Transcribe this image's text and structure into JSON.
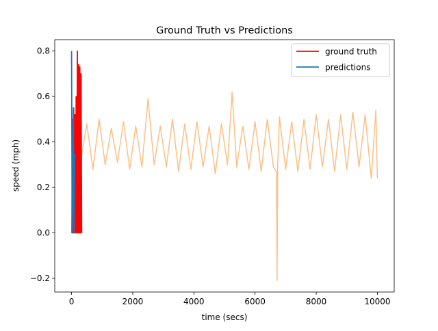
{
  "chart_data": {
    "type": "line",
    "title": "Ground Truth vs Predictions",
    "xlabel": "time (secs)",
    "ylabel": "speed (mph)",
    "xlim": [
      -550,
      10550
    ],
    "ylim": [
      -0.26,
      0.85
    ],
    "xticks": [
      0,
      2000,
      4000,
      6000,
      8000,
      10000
    ],
    "xtick_labels": [
      "0",
      "2000",
      "4000",
      "6000",
      "8000",
      "10000"
    ],
    "yticks": [
      -0.2,
      0.0,
      0.2,
      0.4,
      0.6,
      0.8
    ],
    "ytick_labels": [
      "−0.2",
      "0.0",
      "0.2",
      "0.4",
      "0.6",
      "0.8"
    ],
    "grid": false,
    "legend_position": "top-right",
    "legend": [
      {
        "label": "ground truth",
        "color": "#ff0000"
      },
      {
        "label": "predictions",
        "color": "#1f77b4"
      }
    ],
    "series": [
      {
        "name": "predictions",
        "color": "#1f77b4",
        "x": [
          0,
          20,
          40,
          60,
          80,
          100
        ],
        "y": [
          0.8,
          0.0,
          0.15,
          0.55,
          0.0,
          0.35
        ]
      },
      {
        "name": "ground truth",
        "color": "#ff0000",
        "x": [
          10,
          30,
          50,
          70,
          90,
          110,
          130,
          150,
          170,
          190,
          210,
          230,
          250,
          270,
          290,
          310,
          330
        ],
        "y": [
          0.0,
          0.5,
          0.0,
          0.55,
          0.0,
          0.52,
          0.0,
          0.6,
          0.0,
          0.8,
          0.0,
          0.74,
          0.0,
          0.73,
          0.0,
          0.7,
          0.0
        ]
      },
      {
        "color": "#fdbf86",
        "x": [
          20,
          150,
          300,
          500,
          700,
          900,
          1100,
          1300,
          1500,
          1700,
          1900,
          2100,
          2300,
          2500,
          2700,
          2900,
          3100,
          3300,
          3500,
          3700,
          3900,
          4100,
          4300,
          4500,
          4700,
          4900,
          5100,
          5250,
          5400,
          5600,
          5800,
          6000,
          6200,
          6400,
          6600,
          6700,
          6720,
          6740,
          6800,
          7000,
          7200,
          7400,
          7600,
          7800,
          8000,
          8200,
          8400,
          8600,
          8800,
          9000,
          9200,
          9400,
          9600,
          9800,
          9950,
          10000
        ],
        "y": [
          0.35,
          0.46,
          0.32,
          0.48,
          0.28,
          0.5,
          0.3,
          0.46,
          0.31,
          0.49,
          0.28,
          0.47,
          0.29,
          0.59,
          0.3,
          0.47,
          0.29,
          0.5,
          0.27,
          0.48,
          0.28,
          0.49,
          0.29,
          0.47,
          0.26,
          0.48,
          0.3,
          0.62,
          0.29,
          0.47,
          0.28,
          0.49,
          0.27,
          0.5,
          0.29,
          0.27,
          -0.21,
          0.3,
          0.51,
          0.28,
          0.49,
          0.27,
          0.5,
          0.28,
          0.52,
          0.29,
          0.5,
          0.27,
          0.52,
          0.28,
          0.53,
          0.29,
          0.52,
          0.24,
          0.54,
          0.24
        ]
      }
    ]
  }
}
